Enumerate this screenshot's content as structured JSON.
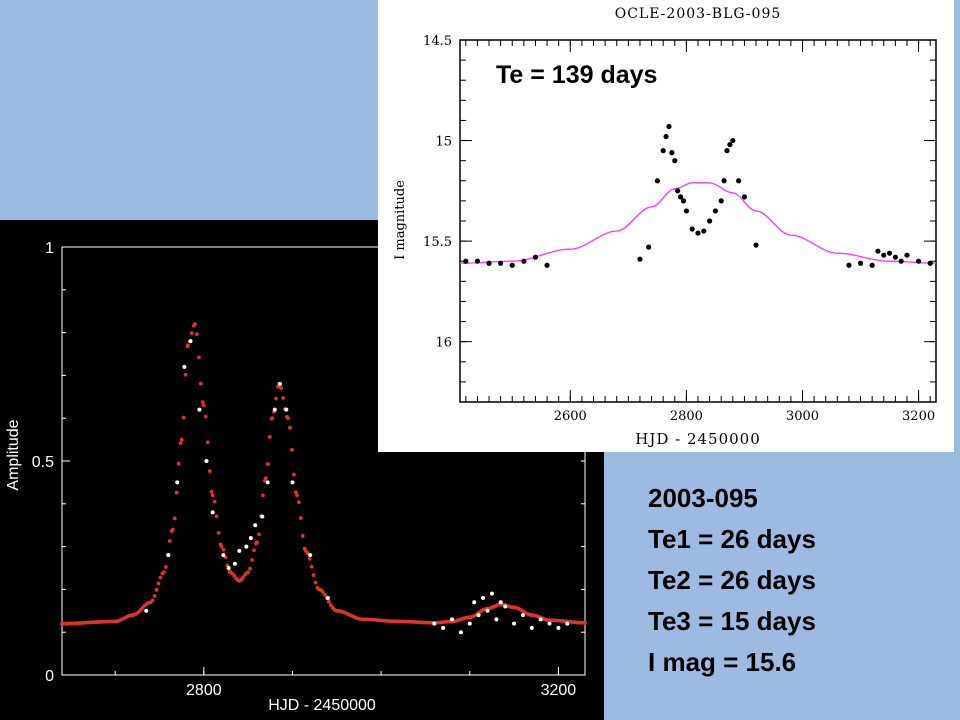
{
  "colors": {
    "background": "#9dbbe1",
    "left_panel": "#000000",
    "model_red": "#e0322a",
    "data_white": "#ffffff",
    "fit_magenta": "#ff33ff",
    "data_black": "#000000"
  },
  "info": {
    "event": "2003-095",
    "te1": "Te1 = 26 days",
    "te2": "Te2 = 26 days",
    "te3": "Te3 = 15 days",
    "imag": "I mag = 15.6"
  },
  "chart_data": [
    {
      "type": "line",
      "panel": "left",
      "title": "",
      "xlabel": "HJD - 2450000",
      "ylabel": "Amplitude",
      "xlim": [
        2640,
        3230
      ],
      "ylim": [
        0,
        1
      ],
      "x_ticks": [
        2800,
        3200
      ],
      "x_tick_labels": [
        "2800",
        "3200"
      ],
      "y_ticks": [
        0,
        0.5,
        1
      ],
      "y_tick_labels": [
        "0",
        "0.5",
        "1"
      ],
      "series": [
        {
          "kind": "model",
          "x": [
            2640,
            2700,
            2720,
            2740,
            2755,
            2765,
            2775,
            2782,
            2790,
            2800,
            2810,
            2820,
            2830,
            2840,
            2850,
            2860,
            2870,
            2877,
            2885,
            2895,
            2905,
            2915,
            2930,
            2950,
            2980,
            3020,
            3060,
            3080,
            3100,
            3120,
            3135,
            3150,
            3170,
            3190,
            3230
          ],
          "values": [
            0.12,
            0.125,
            0.14,
            0.17,
            0.24,
            0.34,
            0.55,
            0.77,
            0.82,
            0.63,
            0.42,
            0.3,
            0.24,
            0.22,
            0.24,
            0.31,
            0.46,
            0.6,
            0.68,
            0.6,
            0.42,
            0.29,
            0.2,
            0.15,
            0.13,
            0.125,
            0.122,
            0.125,
            0.135,
            0.155,
            0.165,
            0.158,
            0.14,
            0.128,
            0.122
          ]
        },
        {
          "kind": "data",
          "x": [
            2735,
            2760,
            2770,
            2778,
            2785,
            2795,
            2803,
            2810,
            2822,
            2828,
            2835,
            2840,
            2848,
            2853,
            2858,
            2866,
            2872,
            2880,
            2886,
            2893,
            2900,
            2920,
            2940,
            3060,
            3070,
            3080,
            3090,
            3100,
            3105,
            3110,
            3115,
            3120,
            3125,
            3130,
            3135,
            3140,
            3150,
            3160,
            3170,
            3180,
            3190,
            3200,
            3210
          ],
          "values": [
            0.15,
            0.28,
            0.45,
            0.72,
            0.78,
            0.62,
            0.5,
            0.38,
            0.28,
            0.25,
            0.26,
            0.29,
            0.3,
            0.32,
            0.35,
            0.37,
            0.45,
            0.62,
            0.68,
            0.62,
            0.45,
            0.28,
            0.18,
            0.12,
            0.11,
            0.13,
            0.1,
            0.12,
            0.17,
            0.14,
            0.18,
            0.15,
            0.19,
            0.13,
            0.17,
            0.16,
            0.12,
            0.14,
            0.11,
            0.13,
            0.12,
            0.11,
            0.12
          ]
        }
      ]
    },
    {
      "type": "scatter",
      "panel": "inset",
      "title": "OCLE-2003-BLG-095",
      "annotation": "Te = 139 days",
      "xlabel": "HJD - 2450000",
      "ylabel": "I magnitude",
      "xlim": [
        2410,
        3230
      ],
      "ylim": [
        14.5,
        16.3
      ],
      "y_inverted": true,
      "x_ticks": [
        2600,
        2800,
        3000,
        3200
      ],
      "x_tick_labels": [
        "2600",
        "2800",
        "3000",
        "3200"
      ],
      "y_ticks": [
        14.5,
        15,
        15.5,
        16
      ],
      "y_tick_labels": [
        "14.5",
        "15",
        "15.5",
        "16"
      ],
      "series": [
        {
          "kind": "fit",
          "x": [
            2410,
            2500,
            2600,
            2680,
            2740,
            2780,
            2810,
            2840,
            2880,
            2920,
            2980,
            3060,
            3150,
            3230
          ],
          "values": [
            15.61,
            15.6,
            15.54,
            15.45,
            15.33,
            15.24,
            15.21,
            15.21,
            15.26,
            15.35,
            15.47,
            15.56,
            15.6,
            15.61
          ]
        },
        {
          "kind": "data",
          "x": [
            2420,
            2440,
            2460,
            2480,
            2500,
            2520,
            2540,
            2560,
            2720,
            2735,
            2750,
            2760,
            2765,
            2770,
            2775,
            2780,
            2785,
            2790,
            2795,
            2800,
            2810,
            2820,
            2830,
            2840,
            2850,
            2860,
            2865,
            2870,
            2875,
            2880,
            2890,
            2900,
            2920,
            3080,
            3100,
            3120,
            3130,
            3140,
            3150,
            3160,
            3170,
            3180,
            3200,
            3220
          ],
          "values": [
            15.6,
            15.6,
            15.61,
            15.61,
            15.62,
            15.6,
            15.58,
            15.62,
            15.59,
            15.53,
            15.2,
            15.05,
            14.98,
            14.93,
            15.06,
            15.1,
            15.25,
            15.28,
            15.3,
            15.35,
            15.44,
            15.46,
            15.45,
            15.4,
            15.35,
            15.3,
            15.2,
            15.05,
            15.02,
            15.0,
            15.2,
            15.28,
            15.52,
            15.62,
            15.61,
            15.62,
            15.55,
            15.57,
            15.56,
            15.58,
            15.6,
            15.57,
            15.6,
            15.61
          ]
        }
      ]
    }
  ]
}
